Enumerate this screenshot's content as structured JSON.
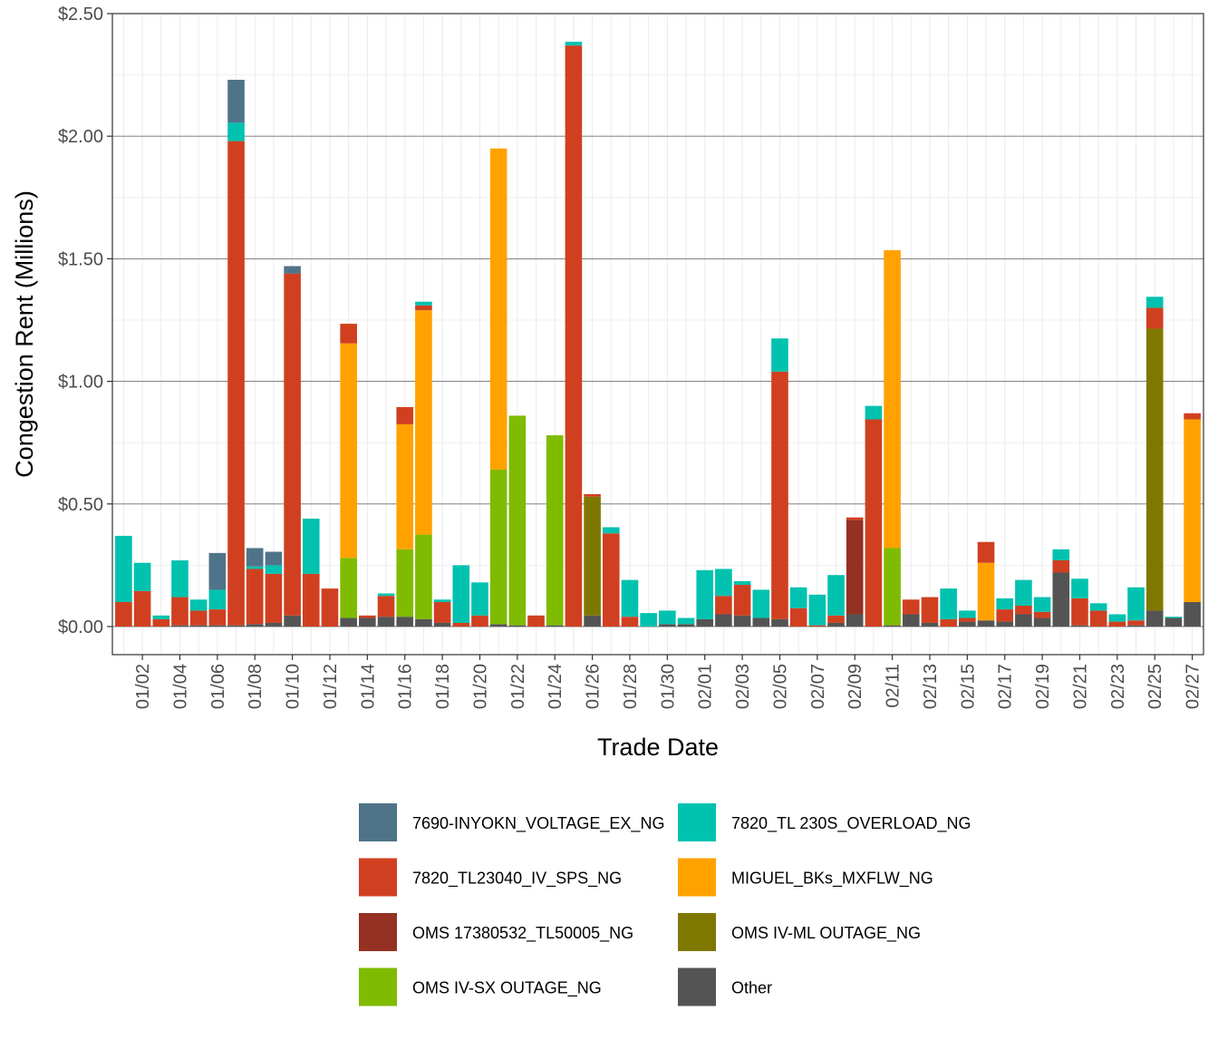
{
  "chart_data": {
    "type": "bar",
    "stacked": true,
    "xlabel": "Trade Date",
    "ylabel": "Congestion Rent (Millions)",
    "ylim": [
      0,
      2.5
    ],
    "y_ticks": [
      0,
      0.5,
      1.0,
      1.5,
      2.0,
      2.5
    ],
    "y_tick_labels": [
      "$0.00",
      "$0.50",
      "$1.00",
      "$1.50",
      "$2.00",
      "$2.50"
    ],
    "grid": true,
    "legend_position": "bottom",
    "categories": [
      "01/01",
      "01/02",
      "01/03",
      "01/04",
      "01/05",
      "01/06",
      "01/07",
      "01/08",
      "01/09",
      "01/10",
      "01/11",
      "01/12",
      "01/13",
      "01/14",
      "01/15",
      "01/16",
      "01/17",
      "01/18",
      "01/19",
      "01/20",
      "01/21",
      "01/22",
      "01/23",
      "01/24",
      "01/25",
      "01/26",
      "01/27",
      "01/28",
      "01/29",
      "01/30",
      "01/31",
      "02/01",
      "02/02",
      "02/03",
      "02/04",
      "02/05",
      "02/06",
      "02/07",
      "02/08",
      "02/09",
      "02/10",
      "02/11",
      "02/12",
      "02/13",
      "02/14",
      "02/15",
      "02/16",
      "02/17",
      "02/18",
      "02/19",
      "02/20",
      "02/21",
      "02/22",
      "02/23",
      "02/24",
      "02/25",
      "02/26",
      "02/27"
    ],
    "x_tick_labels": [
      "01/02",
      "01/04",
      "01/06",
      "01/08",
      "01/10",
      "01/12",
      "01/14",
      "01/16",
      "01/18",
      "01/20",
      "01/22",
      "01/24",
      "01/26",
      "01/28",
      "01/30",
      "02/01",
      "02/03",
      "02/05",
      "02/07",
      "02/09",
      "02/11",
      "02/13",
      "02/15",
      "02/17",
      "02/19",
      "02/21",
      "02/23",
      "02/25",
      "02/27"
    ],
    "series": [
      {
        "name": "Other",
        "color": "#545454",
        "values": [
          0,
          0,
          0,
          0.005,
          0.005,
          0.005,
          0.005,
          0.01,
          0.015,
          0.045,
          0,
          0,
          0.035,
          0.035,
          0.04,
          0.04,
          0.03,
          0.015,
          0,
          0,
          0.01,
          0.005,
          0,
          0.005,
          0,
          0.045,
          0,
          0,
          0,
          0.01,
          0.01,
          0.03,
          0.05,
          0.045,
          0.035,
          0.03,
          0,
          0,
          0.015,
          0.05,
          0,
          0.005,
          0.05,
          0.015,
          0,
          0.02,
          0.025,
          0.02,
          0.05,
          0.035,
          0.22,
          0.005,
          0,
          0,
          0.005,
          0.065,
          0.035,
          0.1
        ]
      },
      {
        "name": "OMS 17380532_TL50005_NG",
        "color": "#943123",
        "values": [
          0,
          0,
          0,
          0,
          0,
          0,
          0,
          0,
          0,
          0,
          0,
          0,
          0,
          0,
          0,
          0,
          0,
          0,
          0,
          0,
          0,
          0,
          0,
          0,
          0,
          0,
          0,
          0,
          0,
          0,
          0,
          0,
          0,
          0,
          0,
          0,
          0,
          0,
          0,
          0.385,
          0,
          0,
          0,
          0,
          0,
          0,
          0,
          0,
          0,
          0,
          0,
          0,
          0,
          0,
          0,
          0,
          0,
          0
        ]
      },
      {
        "name": "OMS IV-ML OUTAGE_NG",
        "color": "#7f7800",
        "values": [
          0,
          0,
          0,
          0,
          0,
          0,
          0,
          0,
          0,
          0,
          0,
          0,
          0,
          0,
          0,
          0,
          0,
          0,
          0,
          0,
          0,
          0,
          0,
          0,
          0,
          0.485,
          0,
          0,
          0,
          0,
          0,
          0,
          0,
          0,
          0,
          0,
          0,
          0,
          0,
          0,
          0,
          0,
          0,
          0,
          0,
          0,
          0,
          0,
          0,
          0,
          0,
          0,
          0,
          0,
          0,
          1.15,
          0,
          0
        ]
      },
      {
        "name": "OMS IV-SX OUTAGE_NG",
        "color": "#7fbb00",
        "values": [
          0,
          0,
          0,
          0,
          0,
          0,
          0,
          0,
          0,
          0,
          0,
          0,
          0.245,
          0,
          0,
          0.275,
          0.345,
          0,
          0,
          0,
          0.63,
          0.855,
          0,
          0.775,
          0,
          0,
          0,
          0,
          0,
          0,
          0,
          0,
          0,
          0,
          0,
          0,
          0,
          0,
          0,
          0,
          0,
          0.315,
          0,
          0,
          0,
          0,
          0,
          0,
          0,
          0,
          0,
          0,
          0,
          0,
          0,
          0,
          0,
          0
        ]
      },
      {
        "name": "MIGUEL_BKs_MXFLW_NG",
        "color": "#ffa200",
        "values": [
          0,
          0,
          0,
          0,
          0,
          0,
          0,
          0,
          0,
          0,
          0,
          0,
          0.875,
          0,
          0,
          0.51,
          0.915,
          0,
          0,
          0,
          1.31,
          0,
          0,
          0,
          0,
          0,
          0,
          0,
          0,
          0,
          0,
          0,
          0,
          0,
          0,
          0,
          0,
          0,
          0,
          0,
          0,
          1.215,
          0,
          0,
          0,
          0,
          0.235,
          0,
          0,
          0,
          0,
          0,
          0,
          0,
          0,
          0,
          0,
          0.745
        ]
      },
      {
        "name": "7820_TL23040_IV_SPS_NG",
        "color": "#d04020",
        "values": [
          0.1,
          0.145,
          0.03,
          0.115,
          0.06,
          0.065,
          1.975,
          0.225,
          0.2,
          1.395,
          0.215,
          0.155,
          0.08,
          0.01,
          0.085,
          0.07,
          0.02,
          0.085,
          0.015,
          0.045,
          0,
          0,
          0.045,
          0,
          2.37,
          0.01,
          0.38,
          0.04,
          0,
          0,
          0,
          0,
          0.075,
          0.125,
          0,
          1.01,
          0.075,
          0.005,
          0.03,
          0.01,
          0.845,
          0,
          0.06,
          0.105,
          0.03,
          0.015,
          0.085,
          0.05,
          0.035,
          0.025,
          0.05,
          0.11,
          0.065,
          0.02,
          0.02,
          0.085,
          0,
          0.025
        ]
      },
      {
        "name": "7820_TL 230S_OVERLOAD_NG",
        "color": "#00c2af",
        "values": [
          0.27,
          0.115,
          0.015,
          0.15,
          0.045,
          0.08,
          0.075,
          0.01,
          0.035,
          0,
          0.225,
          0,
          0,
          0,
          0.01,
          0,
          0.015,
          0.01,
          0.235,
          0.135,
          0,
          0,
          0,
          0,
          0.015,
          0,
          0.025,
          0.15,
          0.055,
          0.055,
          0.025,
          0.2,
          0.11,
          0.015,
          0.115,
          0.135,
          0.085,
          0.125,
          0.165,
          0,
          0.055,
          0,
          0,
          0,
          0.125,
          0.03,
          0,
          0.045,
          0.105,
          0.06,
          0.045,
          0.08,
          0.03,
          0.03,
          0.135,
          0.045,
          0.005,
          0
        ]
      },
      {
        "name": "7690-INYOKN_VOLTAGE_EX_NG",
        "color": "#4f7489",
        "values": [
          0,
          0,
          0,
          0,
          0,
          0.15,
          0.175,
          0.075,
          0.055,
          0.03,
          0,
          0,
          0,
          0,
          0,
          0,
          0,
          0,
          0,
          0,
          0,
          0,
          0,
          0,
          0,
          0,
          0,
          0,
          0,
          0,
          0,
          0,
          0,
          0,
          0,
          0,
          0,
          0,
          0,
          0,
          0,
          0,
          0,
          0,
          0,
          0,
          0,
          0,
          0,
          0,
          0,
          0,
          0,
          0,
          0,
          0,
          0,
          0
        ]
      }
    ],
    "legend": [
      {
        "name": "7690-INYOKN_VOLTAGE_EX_NG",
        "color": "#4f7489"
      },
      {
        "name": "7820_TL 230S_OVERLOAD_NG",
        "color": "#00c2af"
      },
      {
        "name": "7820_TL23040_IV_SPS_NG",
        "color": "#d04020"
      },
      {
        "name": "MIGUEL_BKs_MXFLW_NG",
        "color": "#ffa200"
      },
      {
        "name": "OMS 17380532_TL50005_NG",
        "color": "#943123"
      },
      {
        "name": "OMS IV-ML OUTAGE_NG",
        "color": "#7f7800"
      },
      {
        "name": "OMS IV-SX OUTAGE_NG",
        "color": "#7fbb00"
      },
      {
        "name": "Other",
        "color": "#545454"
      }
    ]
  }
}
